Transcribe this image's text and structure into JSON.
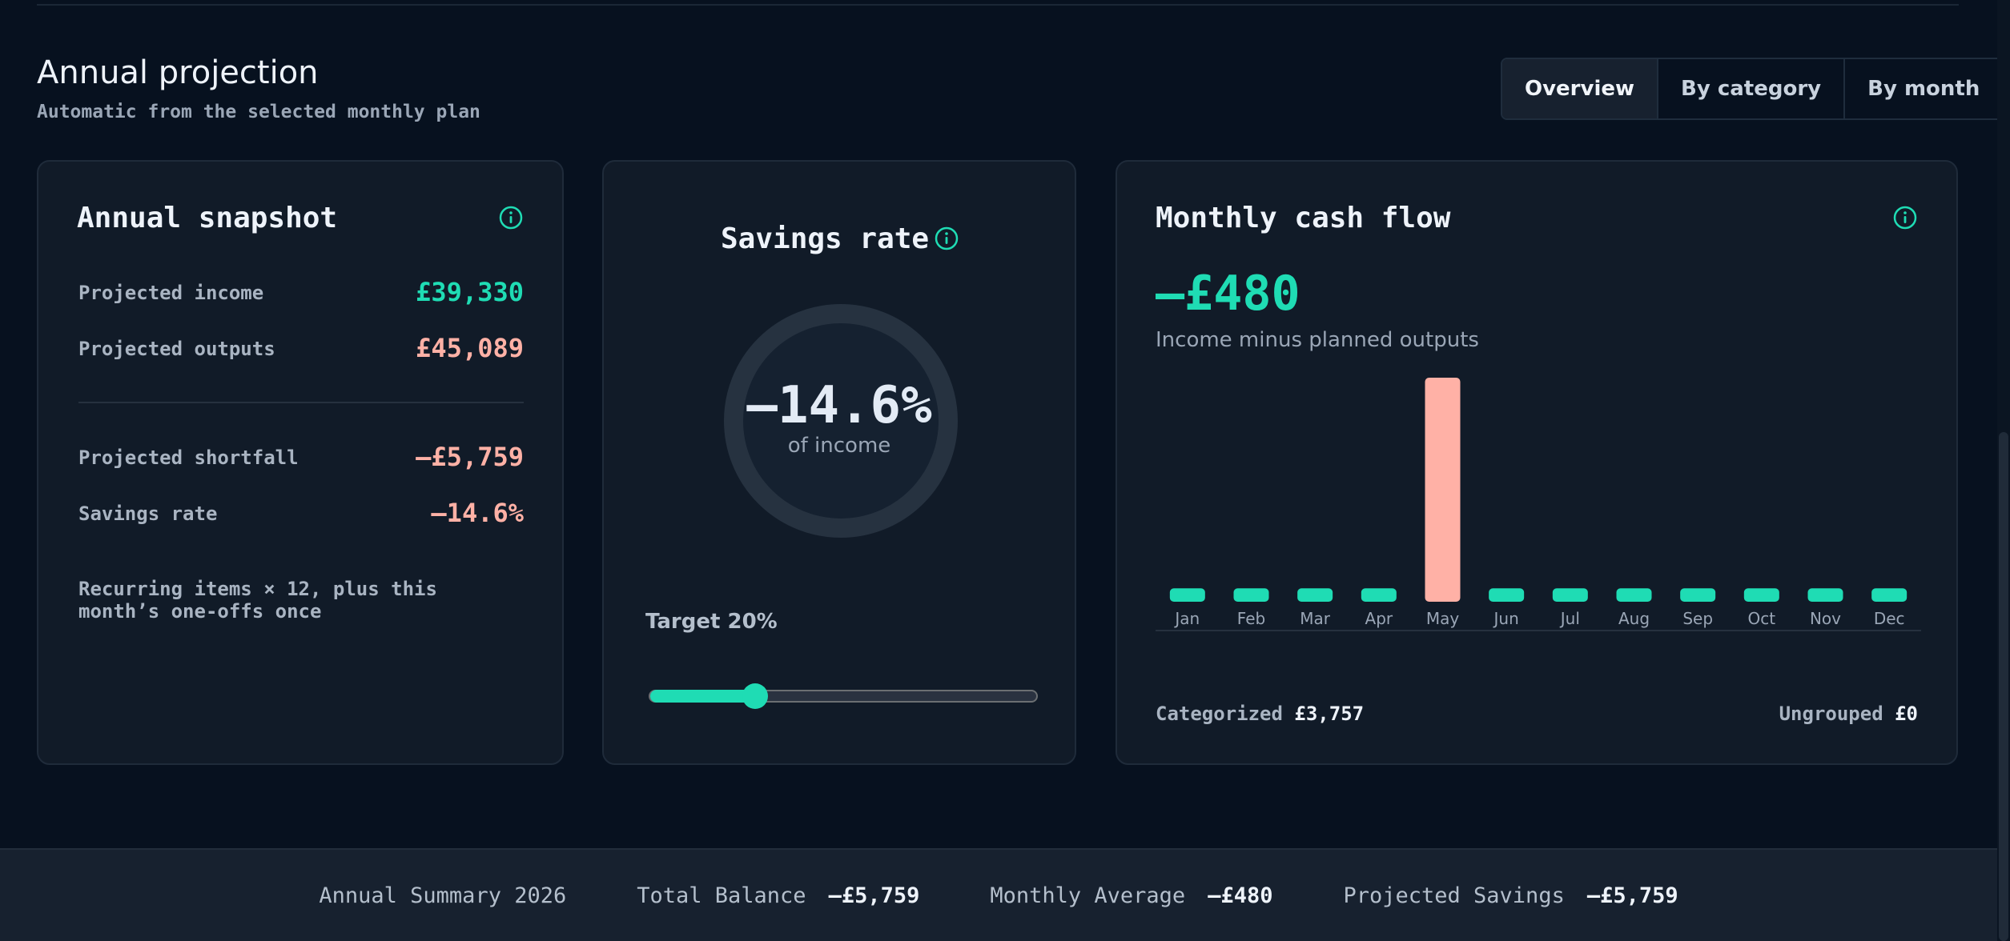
{
  "header": {
    "title": "Annual projection",
    "subtitle": "Automatic from the selected monthly plan",
    "tabs": [
      "Overview",
      "By category",
      "By month"
    ],
    "active_tab": "Overview"
  },
  "snapshot": {
    "title": "Annual snapshot",
    "income_label": "Projected income",
    "income_value": "£39,330",
    "outputs_label": "Projected outputs",
    "outputs_value": "£45,089",
    "shortfall_label": "Projected shortfall",
    "shortfall_value": "–£5,759",
    "rate_label": "Savings rate",
    "rate_value": "–14.6%",
    "note": "Recurring items × 12, plus this month’s one-offs once"
  },
  "savings": {
    "title": "Savings rate",
    "value": "–14.6%",
    "sub": "of income",
    "target_label": "Target 20%",
    "slider_fraction": 0.27
  },
  "cashflow": {
    "title": "Monthly cash flow",
    "value": "–£480",
    "sub": "Income minus planned outputs",
    "categorized_label": "Categorized",
    "categorized_value": "£3,757",
    "ungrouped_label": "Ungrouped",
    "ungrouped_value": "£0"
  },
  "chart_data": {
    "type": "bar",
    "categories": [
      "Jan",
      "Feb",
      "Mar",
      "Apr",
      "May",
      "Jun",
      "Jul",
      "Aug",
      "Sep",
      "Oct",
      "Nov",
      "Dec"
    ],
    "values": [
      1,
      1,
      1,
      1,
      16.7,
      1,
      1,
      1,
      1,
      1,
      1,
      1
    ],
    "highlight": "May",
    "colors": {
      "normal": "#1fdcb4",
      "highlight": "#ffb1a6"
    },
    "title": "",
    "xlabel": "",
    "ylabel": "",
    "ylim": [
      0,
      16.7
    ],
    "grid": false
  },
  "summary": {
    "title": "Annual Summary 2026",
    "total_label": "Total Balance",
    "total_value": "–£5,759",
    "avg_label": "Monthly Average",
    "avg_value": "–£480",
    "savings_label": "Projected Savings",
    "savings_value": "–£5,759"
  },
  "colors": {
    "accent": "#1fdcb4",
    "negative": "#ffb1a6",
    "background": "#07111f",
    "card": "#111b28"
  }
}
